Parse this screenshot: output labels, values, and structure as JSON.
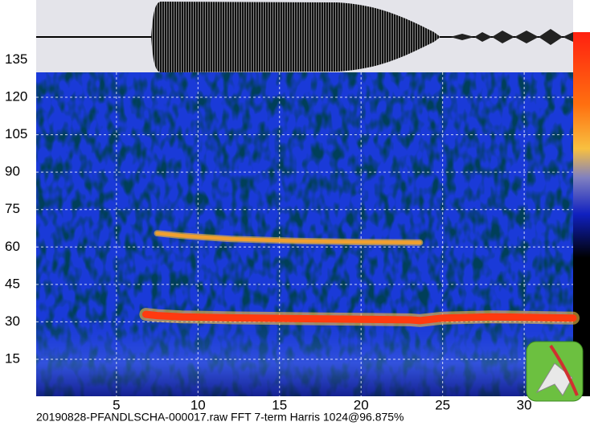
{
  "chart_data": {
    "type": "spectrogram",
    "caption": "20190828-PFANDLSCHA-000017.raw FFT 7-term Harris 1024@96.875%",
    "xlim": [
      0,
      33
    ],
    "xticks": [
      5,
      10,
      15,
      20,
      25,
      30
    ],
    "ylim": [
      0,
      159
    ],
    "yticks": [
      15,
      30,
      45,
      60,
      75,
      90,
      105,
      120,
      135
    ],
    "grid": true,
    "traces": [
      {
        "color": "#ff3a10",
        "x": [
          6.8,
          7.5,
          9,
          12,
          16,
          20,
          23,
          23.6,
          25,
          28,
          33
        ],
        "values": [
          33,
          32.5,
          32,
          31.6,
          31.3,
          31,
          30.8,
          30.5,
          31.5,
          32,
          31.5
        ]
      },
      {
        "color": "#f0a030",
        "x": [
          7.5,
          9,
          12,
          16,
          20,
          23.6
        ],
        "values": [
          65.5,
          64.5,
          63.2,
          62.4,
          62,
          61.8
        ]
      }
    ]
  }
}
